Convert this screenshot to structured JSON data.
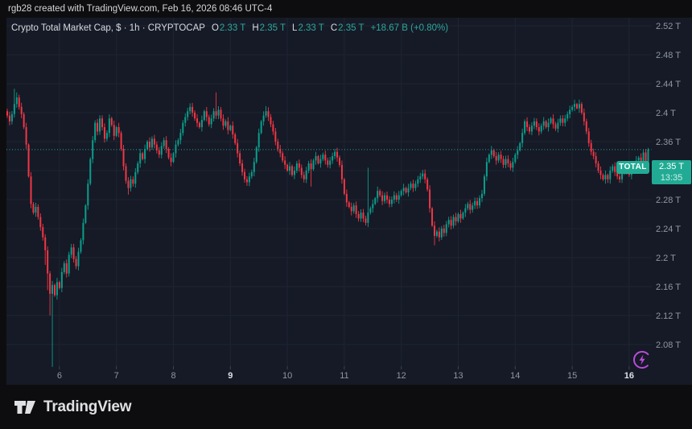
{
  "banner": {
    "text": "rgb28 created with TradingView.com, Feb 16, 2026 08:46 UTC-4"
  },
  "legend": {
    "title": "Crypto Total Market Cap, $ · 1h · CRYPTOCAP",
    "items": [
      {
        "label": "O",
        "value": "2.33 T"
      },
      {
        "label": "H",
        "value": "2.35 T"
      },
      {
        "label": "L",
        "value": "2.33 T"
      },
      {
        "label": "C",
        "value": "2.35 T"
      }
    ],
    "change": "+18.67 B (+0.80%)"
  },
  "price_scale": {
    "symbol_badge": "TOTAL",
    "price": "2.35 T",
    "countdown": "13:35"
  },
  "footer": {
    "brand": "TradingView"
  },
  "colors": {
    "bg_outer": "#0d0d0f",
    "bg_chart": "#151a26",
    "grid": "#1f2433",
    "up": "#0b9e8c",
    "down": "#f23645",
    "dotted": "#26a69a",
    "badge": "#22ab94",
    "text_primary": "#d6d9de",
    "text_muted": "#9096a1",
    "text_bold": "#dde0e5",
    "banner_text": "#d4d5d7",
    "ohlc_value": "#2da79b",
    "logo": "#dfe0e3",
    "flash": "#bb4bdc",
    "tick": "#3c4250"
  },
  "chart_data": {
    "type": "candlestick",
    "title": "Crypto Total Market Cap",
    "symbol": "CRYPTOCAP:TOTAL",
    "interval": "1h",
    "currency": "$",
    "current_price": 2.349,
    "ylim_visible": [
      2.08,
      2.52
    ],
    "grid": true,
    "first_open": 2.402,
    "closes": [
      2.396,
      2.388,
      2.398,
      2.412,
      2.421,
      2.408,
      2.398,
      2.38,
      2.356,
      2.312,
      2.274,
      2.262,
      2.27,
      2.256,
      2.242,
      2.228,
      2.21,
      2.178,
      2.15,
      2.162,
      2.148,
      2.166,
      2.158,
      2.18,
      2.192,
      2.178,
      2.204,
      2.214,
      2.198,
      2.188,
      2.208,
      2.224,
      2.248,
      2.272,
      2.302,
      2.336,
      2.362,
      2.386,
      2.374,
      2.392,
      2.38,
      2.364,
      2.372,
      2.392,
      2.383,
      2.368,
      2.38,
      2.372,
      2.35,
      2.326,
      2.306,
      2.296,
      2.308,
      2.302,
      2.318,
      2.33,
      2.344,
      2.336,
      2.35,
      2.36,
      2.352,
      2.364,
      2.356,
      2.348,
      2.342,
      2.354,
      2.362,
      2.35,
      2.338,
      2.332,
      2.344,
      2.356,
      2.362,
      2.372,
      2.386,
      2.394,
      2.402,
      2.408,
      2.4,
      2.392,
      2.386,
      2.38,
      2.39,
      2.402,
      2.394,
      2.384,
      2.392,
      2.402,
      2.396,
      2.404,
      2.392,
      2.382,
      2.388,
      2.376,
      2.382,
      2.37,
      2.358,
      2.344,
      2.33,
      2.318,
      2.308,
      2.304,
      2.312,
      2.318,
      2.332,
      2.352,
      2.372,
      2.388,
      2.396,
      2.402,
      2.394,
      2.384,
      2.374,
      2.36,
      2.35,
      2.344,
      2.334,
      2.328,
      2.32,
      2.326,
      2.314,
      2.32,
      2.33,
      2.324,
      2.314,
      2.308,
      2.32,
      2.33,
      2.322,
      2.334,
      2.34,
      2.33,
      2.336,
      2.342,
      2.334,
      2.328,
      2.334,
      2.34,
      2.346,
      2.338,
      2.328,
      2.308,
      2.288,
      2.276,
      2.27,
      2.264,
      2.272,
      2.26,
      2.254,
      2.262,
      2.254,
      2.248,
      2.262,
      2.268,
      2.274,
      2.282,
      2.292,
      2.286,
      2.278,
      2.286,
      2.28,
      2.274,
      2.28,
      2.286,
      2.28,
      2.286,
      2.292,
      2.296,
      2.29,
      2.296,
      2.302,
      2.296,
      2.302,
      2.308,
      2.312,
      2.316,
      2.308,
      2.294,
      2.268,
      2.244,
      2.23,
      2.236,
      2.228,
      2.24,
      2.234,
      2.246,
      2.252,
      2.244,
      2.256,
      2.25,
      2.26,
      2.254,
      2.262,
      2.268,
      2.274,
      2.266,
      2.272,
      2.278,
      2.272,
      2.282,
      2.288,
      2.312,
      2.332,
      2.342,
      2.348,
      2.34,
      2.334,
      2.342,
      2.336,
      2.328,
      2.336,
      2.33,
      2.324,
      2.332,
      2.342,
      2.348,
      2.358,
      2.372,
      2.388,
      2.38,
      2.374,
      2.382,
      2.388,
      2.38,
      2.374,
      2.382,
      2.388,
      2.38,
      2.386,
      2.392,
      2.384,
      2.378,
      2.386,
      2.392,
      2.386,
      2.392,
      2.398,
      2.404,
      2.408,
      2.412,
      2.406,
      2.412,
      2.4,
      2.388,
      2.374,
      2.358,
      2.346,
      2.34,
      2.33,
      2.32,
      2.314,
      2.308,
      2.314,
      2.308,
      2.32,
      2.326,
      2.318,
      2.312,
      2.308,
      2.318,
      2.326,
      2.32,
      2.314,
      2.322,
      2.328,
      2.334,
      2.338,
      2.331,
      2.345,
      2.3304,
      2.349
    ],
    "wicks": {
      "3": {
        "h": 2.433
      },
      "4": {
        "h": 2.428
      },
      "16": {
        "l": 2.19
      },
      "17": {
        "l": 2.155
      },
      "18": {
        "l": 2.12
      },
      "19": {
        "l": 2.049
      },
      "51": {
        "l": 2.287
      },
      "77": {
        "h": 2.413
      },
      "88": {
        "h": 2.428
      },
      "101": {
        "l": 2.299
      },
      "109": {
        "h": 2.409
      },
      "128": {
        "l": 2.298
      },
      "152": {
        "h": 2.324
      },
      "175": {
        "h": 2.321
      },
      "180": {
        "l": 2.217
      },
      "241": {
        "h": 2.418
      },
      "253": {
        "l": 2.303
      },
      "269": {
        "h": 2.35,
        "l": 2.325
      },
      "270": {
        "h": 2.3515,
        "l": 2.329
      }
    },
    "y_ticks": [
      {
        "label": "2.52 T",
        "p": 2.52
      },
      {
        "label": "2.48 T",
        "p": 2.48
      },
      {
        "label": "2.44 T",
        "p": 2.44
      },
      {
        "label": "2.4 T",
        "p": 2.4
      },
      {
        "label": "2.36 T",
        "p": 2.36
      },
      {
        "label": "2.32 T",
        "p": 2.32
      },
      {
        "label": "2.28 T",
        "p": 2.28
      },
      {
        "label": "2.24 T",
        "p": 2.24
      },
      {
        "label": "2.2 T",
        "p": 2.2
      },
      {
        "label": "2.16 T",
        "p": 2.16
      },
      {
        "label": "2.12 T",
        "p": 2.12
      },
      {
        "label": "2.08 T",
        "p": 2.08
      }
    ],
    "x_ticks": [
      {
        "label": "6",
        "i": 22,
        "bold": false
      },
      {
        "label": "7",
        "i": 46,
        "bold": false
      },
      {
        "label": "8",
        "i": 70,
        "bold": false
      },
      {
        "label": "9",
        "i": 94,
        "bold": true
      },
      {
        "label": "10",
        "i": 118,
        "bold": false
      },
      {
        "label": "11",
        "i": 142,
        "bold": false
      },
      {
        "label": "12",
        "i": 166,
        "bold": false
      },
      {
        "label": "13",
        "i": 190,
        "bold": false
      },
      {
        "label": "14",
        "i": 214,
        "bold": false
      },
      {
        "label": "15",
        "i": 238,
        "bold": false
      },
      {
        "label": "16",
        "i": 262,
        "bold": true
      }
    ]
  }
}
